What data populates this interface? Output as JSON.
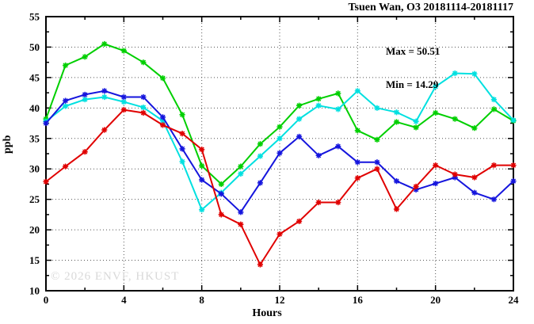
{
  "title": "Tsuen Wan, O3 20181114-20181117",
  "annotation": {
    "max_label": "Max = 50.51",
    "min_label": "Min = 14.29"
  },
  "watermark": "© 2026 ENVF, HKUST",
  "axes": {
    "ylabel": "ppb",
    "xlabel": "Hours"
  },
  "colors": {
    "red_series": "#e00000",
    "blue_series": "#1515dd",
    "green_series": "#00cf00",
    "cyan_series": "#00e0e0",
    "grid": "#555555",
    "axis": "#000000",
    "watermark": "#d9d9d9"
  },
  "chart_data": {
    "type": "line",
    "title": "Tsuen Wan, O3 20181114-20181117",
    "xlabel": "Hours",
    "ylabel": "ppb",
    "xlim": [
      0,
      24
    ],
    "ylim": [
      10,
      55
    ],
    "grid": "dotted",
    "legend": "none",
    "x_major_ticks": [
      0,
      4,
      8,
      12,
      16,
      20,
      24
    ],
    "x_minor_ticks": [
      2,
      6,
      10,
      14,
      18,
      22
    ],
    "y_major_ticks": [
      10,
      15,
      20,
      25,
      30,
      35,
      40,
      45,
      50,
      55
    ],
    "y_minor_ticks": [
      12.5,
      17.5,
      22.5,
      27.5,
      32.5,
      37.5,
      42.5,
      47.5,
      52.5
    ],
    "grid_x": [
      4,
      8,
      12,
      16,
      20
    ],
    "grid_y": [
      15,
      20,
      25,
      30,
      35,
      40,
      45,
      50
    ],
    "x": [
      0,
      1,
      2,
      3,
      4,
      5,
      6,
      7,
      8,
      9,
      10,
      11,
      12,
      13,
      14,
      15,
      16,
      17,
      18,
      19,
      20,
      21,
      22,
      23,
      24
    ],
    "series": [
      {
        "name": "green-series",
        "color": "#00cf00",
        "values": [
          38.2,
          47.0,
          48.4,
          50.51,
          49.4,
          47.5,
          44.9,
          38.9,
          30.5,
          27.5,
          30.4,
          34.1,
          36.9,
          40.4,
          41.5,
          42.4,
          36.3,
          34.8,
          37.7,
          36.8,
          39.2,
          38.2,
          36.7,
          39.8,
          37.9
        ]
      },
      {
        "name": "cyan-series",
        "color": "#00e0e0",
        "values": [
          37.8,
          40.3,
          41.4,
          41.8,
          41.0,
          40.1,
          37.9,
          31.2,
          23.3,
          26.1,
          29.2,
          32.1,
          35.0,
          38.2,
          40.4,
          39.8,
          42.8,
          40.0,
          39.3,
          37.8,
          43.5,
          45.7,
          45.6,
          41.4,
          38.0
        ]
      },
      {
        "name": "blue-series",
        "color": "#1515dd",
        "values": [
          37.5,
          41.2,
          42.2,
          42.8,
          41.8,
          41.8,
          38.5,
          33.3,
          28.2,
          25.9,
          22.9,
          27.7,
          32.6,
          35.3,
          32.2,
          33.7,
          31.1,
          31.1,
          28.0,
          26.6,
          27.6,
          28.6,
          26.1,
          25.0,
          28.0
        ]
      },
      {
        "name": "red-series",
        "color": "#e00000",
        "values": [
          27.9,
          30.4,
          32.8,
          36.4,
          39.7,
          39.2,
          37.2,
          35.8,
          33.2,
          22.5,
          20.9,
          14.29,
          19.3,
          21.4,
          24.5,
          24.5,
          28.5,
          30.0,
          23.4,
          27.1,
          30.6,
          29.1,
          28.6,
          30.6,
          30.6
        ]
      }
    ],
    "stats": {
      "max": 50.51,
      "min": 14.29
    }
  }
}
